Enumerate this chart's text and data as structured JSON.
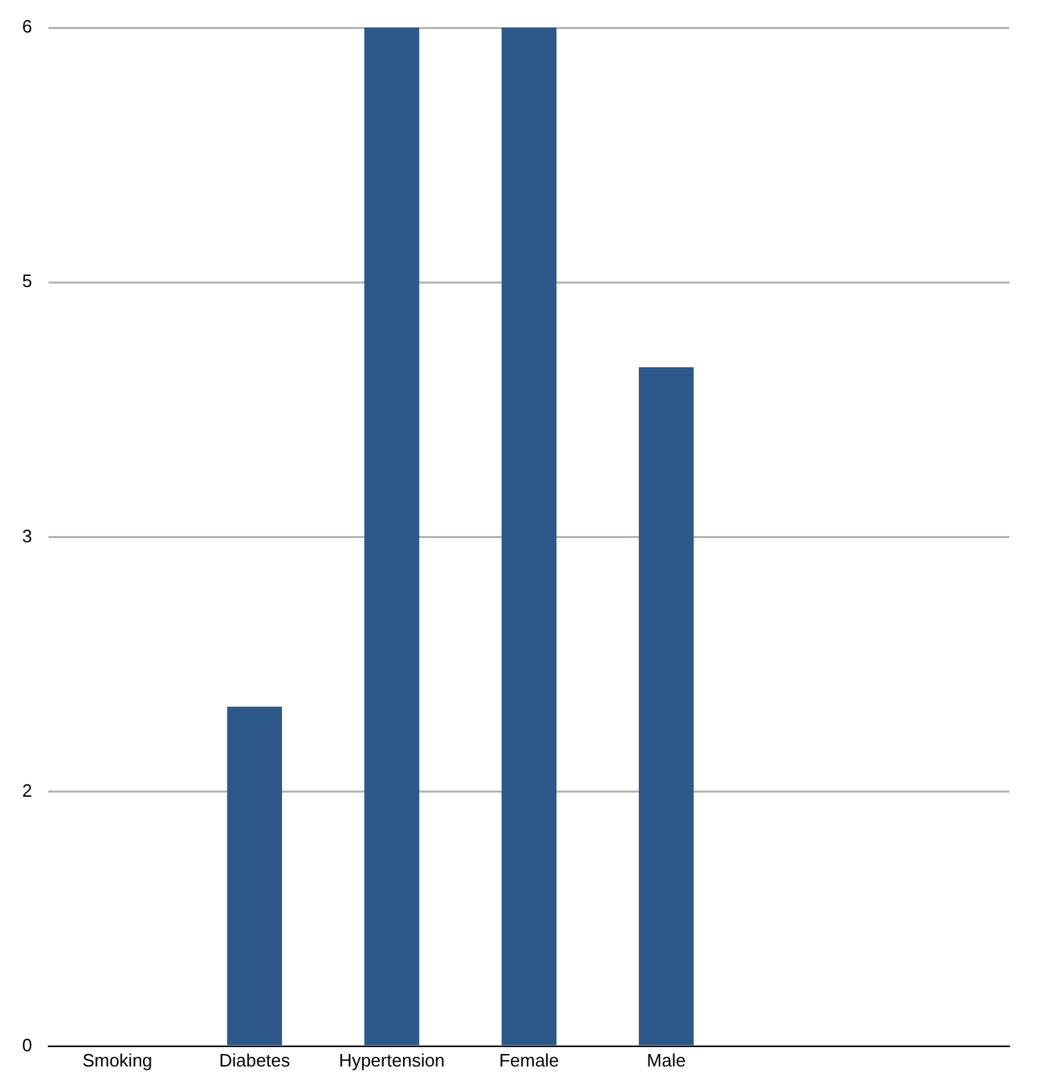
{
  "chart_data": {
    "type": "bar",
    "categories": [
      "Smoking",
      "Diabetes",
      "Hypertension",
      "Female",
      "Male",
      null,
      null
    ],
    "values": [
      0,
      2,
      6,
      6,
      4,
      null,
      null
    ],
    "color": "#2e5889",
    "ylim": [
      0,
      6
    ],
    "yticks": [
      0,
      {
        "value": 1.5,
        "label": "2"
      },
      3,
      {
        "value": 4.5,
        "label": "5"
      },
      6
    ],
    "grid": "y",
    "legend": false
  }
}
